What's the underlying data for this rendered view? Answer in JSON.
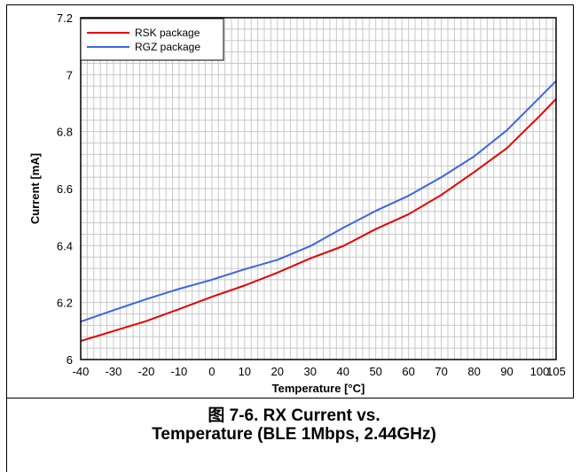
{
  "chart_data": {
    "type": "line",
    "title": "",
    "xlabel": "Temperature [°C]",
    "ylabel": "Current [mA]",
    "x": [
      -40,
      -30,
      -20,
      -10,
      0,
      10,
      20,
      30,
      40,
      50,
      60,
      70,
      80,
      90,
      100,
      105
    ],
    "xticks": [
      "-40",
      "-30",
      "-20",
      "-10",
      "0",
      "10",
      "20",
      "30",
      "40",
      "50",
      "60",
      "70",
      "80",
      "90",
      "100",
      "105"
    ],
    "yticks": [
      "6",
      "6.2",
      "6.4",
      "6.6",
      "6.8",
      "7",
      "7.2"
    ],
    "xlim": [
      -40,
      105
    ],
    "ylim": [
      6,
      7.2
    ],
    "grid": true,
    "legend_position": "top-left",
    "series": [
      {
        "name": "RSK package",
        "color": "#e60000",
        "values": [
          6.065,
          6.1,
          6.135,
          6.177,
          6.22,
          6.26,
          6.305,
          6.355,
          6.398,
          6.458,
          6.51,
          6.578,
          6.658,
          6.742,
          6.855,
          6.915
        ]
      },
      {
        "name": "RGZ package",
        "color": "#3c64e6",
        "values": [
          6.133,
          6.173,
          6.212,
          6.248,
          6.28,
          6.317,
          6.35,
          6.398,
          6.462,
          6.522,
          6.575,
          6.64,
          6.713,
          6.805,
          6.92,
          6.978
        ]
      }
    ]
  },
  "caption": {
    "line1": "图 7-6. RX Current vs.",
    "line2": "Temperature (BLE 1Mbps, 2.44GHz)"
  }
}
